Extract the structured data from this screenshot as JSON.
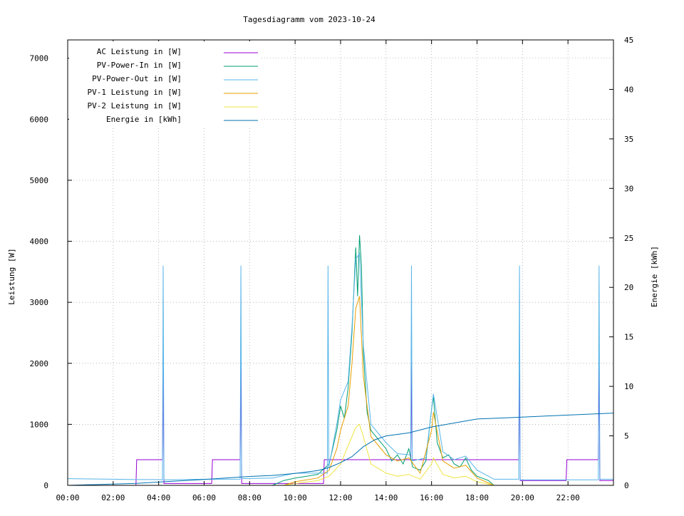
{
  "chart_data": {
    "type": "line",
    "title": "Tagesdiagramm vom 2023-10-24",
    "ylabel": "Leistung [W]",
    "y2label": "Energie [kWh]",
    "xlim": [
      "00:00",
      "24:00"
    ],
    "ylim": [
      0,
      7300
    ],
    "y2lim": [
      0,
      45
    ],
    "x_ticks": [
      "00:00",
      "02:00",
      "04:00",
      "06:00",
      "08:00",
      "10:00",
      "12:00",
      "14:00",
      "16:00",
      "18:00",
      "20:00",
      "22:00"
    ],
    "y_ticks": [
      0,
      1000,
      2000,
      3000,
      4000,
      5000,
      6000,
      7000
    ],
    "y2_ticks": [
      0,
      5,
      10,
      15,
      20,
      25,
      30,
      35,
      40,
      45
    ],
    "grid": true,
    "legend_position": "top-left",
    "series": [
      {
        "name": "AC Leistung in [W]",
        "color": "#9400d3",
        "axis": "left",
        "points": [
          [
            "00:00",
            0
          ],
          [
            "03:00",
            0
          ],
          [
            "03:02",
            420
          ],
          [
            "04:10",
            420
          ],
          [
            "04:12",
            2000
          ],
          [
            "04:14",
            30
          ],
          [
            "06:20",
            30
          ],
          [
            "06:22",
            420
          ],
          [
            "07:35",
            420
          ],
          [
            "07:37",
            2000
          ],
          [
            "07:39",
            30
          ],
          [
            "11:15",
            30
          ],
          [
            "11:17",
            420
          ],
          [
            "15:05",
            420
          ],
          [
            "15:07",
            2000
          ],
          [
            "15:09",
            420
          ],
          [
            "18:40",
            420
          ],
          [
            "18:42",
            420
          ],
          [
            "19:50",
            420
          ],
          [
            "19:52",
            2000
          ],
          [
            "19:54",
            80
          ],
          [
            "21:55",
            80
          ],
          [
            "21:57",
            420
          ],
          [
            "23:20",
            420
          ],
          [
            "23:22",
            2000
          ],
          [
            "23:24",
            80
          ],
          [
            "24:00",
            80
          ]
        ]
      },
      {
        "name": "PV-Power-In in [W]",
        "color": "#009e73",
        "axis": "left",
        "points": [
          [
            "09:00",
            0
          ],
          [
            "09:30",
            80
          ],
          [
            "10:00",
            120
          ],
          [
            "10:30",
            150
          ],
          [
            "11:00",
            180
          ],
          [
            "11:30",
            350
          ],
          [
            "11:50",
            900
          ],
          [
            "12:00",
            1300
          ],
          [
            "12:10",
            1100
          ],
          [
            "12:20",
            1600
          ],
          [
            "12:30",
            2500
          ],
          [
            "12:40",
            3900
          ],
          [
            "12:45",
            3100
          ],
          [
            "12:50",
            4100
          ],
          [
            "12:55",
            3600
          ],
          [
            "13:00",
            2200
          ],
          [
            "13:10",
            1200
          ],
          [
            "13:20",
            900
          ],
          [
            "13:40",
            750
          ],
          [
            "14:00",
            600
          ],
          [
            "14:15",
            400
          ],
          [
            "14:30",
            500
          ],
          [
            "14:45",
            350
          ],
          [
            "15:00",
            600
          ],
          [
            "15:10",
            300
          ],
          [
            "15:30",
            250
          ],
          [
            "15:45",
            400
          ],
          [
            "16:00",
            1250
          ],
          [
            "16:05",
            1450
          ],
          [
            "16:15",
            700
          ],
          [
            "16:30",
            450
          ],
          [
            "16:45",
            500
          ],
          [
            "17:00",
            350
          ],
          [
            "17:15",
            300
          ],
          [
            "17:30",
            450
          ],
          [
            "17:45",
            250
          ],
          [
            "18:00",
            150
          ],
          [
            "18:30",
            80
          ],
          [
            "18:45",
            0
          ]
        ]
      },
      {
        "name": "PV-Power-Out in [W]",
        "color": "#56b4e9",
        "axis": "left",
        "points": [
          [
            "00:00",
            110
          ],
          [
            "01:00",
            105
          ],
          [
            "02:00",
            100
          ],
          [
            "03:00",
            95
          ],
          [
            "04:00",
            95
          ],
          [
            "04:10",
            90
          ],
          [
            "04:12",
            3600
          ],
          [
            "04:14",
            90
          ],
          [
            "06:00",
            100
          ],
          [
            "07:35",
            100
          ],
          [
            "07:37",
            3600
          ],
          [
            "07:39",
            110
          ],
          [
            "09:00",
            120
          ],
          [
            "10:00",
            200
          ],
          [
            "11:00",
            200
          ],
          [
            "11:25",
            200
          ],
          [
            "11:27",
            3600
          ],
          [
            "11:29",
            300
          ],
          [
            "11:50",
            1000
          ],
          [
            "12:00",
            1400
          ],
          [
            "12:20",
            1700
          ],
          [
            "12:30",
            2600
          ],
          [
            "12:40",
            3700
          ],
          [
            "12:50",
            3800
          ],
          [
            "13:00",
            2300
          ],
          [
            "13:20",
            1000
          ],
          [
            "14:00",
            700
          ],
          [
            "14:30",
            520
          ],
          [
            "15:05",
            500
          ],
          [
            "15:07",
            3600
          ],
          [
            "15:09",
            400
          ],
          [
            "15:45",
            450
          ],
          [
            "16:05",
            1500
          ],
          [
            "16:30",
            550
          ],
          [
            "17:00",
            420
          ],
          [
            "17:30",
            480
          ],
          [
            "18:00",
            250
          ],
          [
            "18:45",
            100
          ],
          [
            "19:50",
            100
          ],
          [
            "19:52",
            3600
          ],
          [
            "19:54",
            90
          ],
          [
            "22:00",
            90
          ],
          [
            "23:20",
            90
          ],
          [
            "23:22",
            3600
          ],
          [
            "23:24",
            100
          ],
          [
            "24:00",
            100
          ]
        ]
      },
      {
        "name": "PV-1 Leistung in [W]",
        "color": "#e69f00",
        "axis": "left",
        "points": [
          [
            "09:30",
            0
          ],
          [
            "10:00",
            60
          ],
          [
            "11:00",
            120
          ],
          [
            "11:30",
            250
          ],
          [
            "11:50",
            600
          ],
          [
            "12:00",
            900
          ],
          [
            "12:20",
            1300
          ],
          [
            "12:30",
            2000
          ],
          [
            "12:40",
            2900
          ],
          [
            "12:50",
            3100
          ],
          [
            "13:00",
            1800
          ],
          [
            "13:20",
            800
          ],
          [
            "14:00",
            500
          ],
          [
            "14:30",
            400
          ],
          [
            "15:00",
            450
          ],
          [
            "15:30",
            200
          ],
          [
            "16:00",
            900
          ],
          [
            "16:05",
            1200
          ],
          [
            "16:30",
            400
          ],
          [
            "17:00",
            280
          ],
          [
            "17:30",
            330
          ],
          [
            "18:00",
            120
          ],
          [
            "18:45",
            0
          ]
        ]
      },
      {
        "name": "PV-2 Leistung in [W]",
        "color": "#f0e442",
        "axis": "left",
        "points": [
          [
            "09:30",
            0
          ],
          [
            "10:00",
            30
          ],
          [
            "11:00",
            80
          ],
          [
            "11:30",
            150
          ],
          [
            "12:00",
            350
          ],
          [
            "12:30",
            800
          ],
          [
            "12:40",
            950
          ],
          [
            "12:50",
            1000
          ],
          [
            "13:00",
            800
          ],
          [
            "13:20",
            350
          ],
          [
            "14:00",
            200
          ],
          [
            "14:30",
            150
          ],
          [
            "15:00",
            180
          ],
          [
            "15:30",
            100
          ],
          [
            "16:00",
            350
          ],
          [
            "16:05",
            450
          ],
          [
            "16:30",
            180
          ],
          [
            "17:00",
            120
          ],
          [
            "17:30",
            150
          ],
          [
            "18:00",
            60
          ],
          [
            "18:45",
            0
          ]
        ]
      },
      {
        "name": "Energie in [kWh]",
        "color": "#0072b2",
        "axis": "right",
        "points": [
          [
            "00:00",
            0
          ],
          [
            "03:00",
            0.2
          ],
          [
            "06:00",
            0.6
          ],
          [
            "08:00",
            0.9
          ],
          [
            "09:00",
            1.0
          ],
          [
            "10:00",
            1.2
          ],
          [
            "11:00",
            1.5
          ],
          [
            "11:30",
            1.8
          ],
          [
            "12:00",
            2.3
          ],
          [
            "12:30",
            2.9
          ],
          [
            "13:00",
            3.9
          ],
          [
            "13:30",
            4.6
          ],
          [
            "14:00",
            5.0
          ],
          [
            "15:00",
            5.3
          ],
          [
            "16:00",
            5.9
          ],
          [
            "17:00",
            6.3
          ],
          [
            "18:00",
            6.7
          ],
          [
            "19:00",
            6.8
          ],
          [
            "20:00",
            6.9
          ],
          [
            "21:00",
            7.0
          ],
          [
            "22:00",
            7.1
          ],
          [
            "23:00",
            7.2
          ],
          [
            "24:00",
            7.3
          ]
        ]
      }
    ]
  }
}
